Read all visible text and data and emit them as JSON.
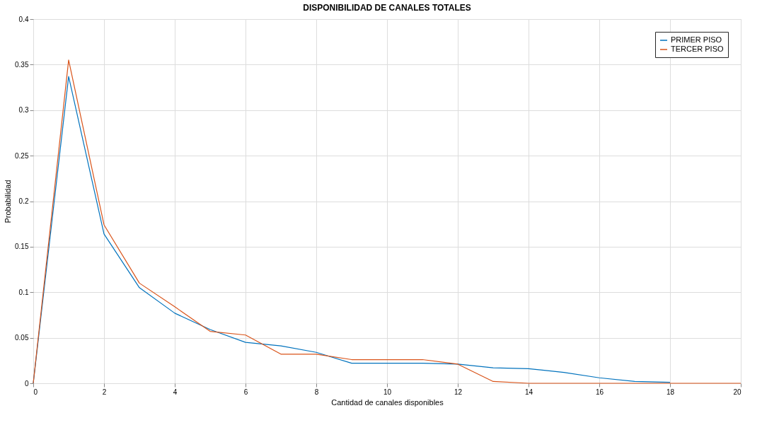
{
  "chart_data": {
    "type": "line",
    "title": "DISPONIBILIDAD DE CANALES TOTALES",
    "xlabel": "Cantidad de canales disponibles",
    "ylabel": "Probabilidad",
    "x": [
      0,
      1,
      2,
      3,
      4,
      5,
      6,
      7,
      8,
      9,
      10,
      11,
      12,
      13,
      14,
      15,
      16,
      17,
      18,
      19,
      20
    ],
    "series": [
      {
        "name": "PRIMER PISO",
        "color": "#0072bd",
        "values": [
          0,
          0.337,
          0.164,
          0.105,
          0.077,
          0.059,
          0.045,
          0.041,
          0.034,
          0.022,
          0.022,
          0.022,
          0.021,
          0.017,
          0.016,
          0.012,
          0.006,
          0.002,
          0.001,
          null,
          null
        ]
      },
      {
        "name": "TERCER PISO",
        "color": "#d95319",
        "values": [
          0,
          0.355,
          0.174,
          0.11,
          0.084,
          0.057,
          0.053,
          0.032,
          0.032,
          0.026,
          0.026,
          0.026,
          0.021,
          0.002,
          0,
          0,
          0,
          0,
          0,
          0,
          0
        ]
      }
    ],
    "xlim": [
      0,
      20
    ],
    "xticks": [
      0,
      2,
      4,
      6,
      8,
      10,
      12,
      14,
      16,
      18,
      20
    ],
    "ylim": [
      0,
      0.4
    ],
    "yticks": [
      0,
      0.05,
      0.1,
      0.15,
      0.2,
      0.25,
      0.3,
      0.35,
      0.4
    ],
    "grid": true,
    "legend": "top right",
    "marker": "none",
    "line_style": "solid"
  }
}
